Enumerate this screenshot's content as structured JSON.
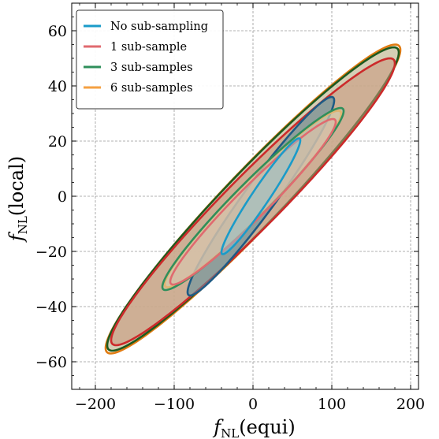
{
  "chart_data": {
    "type": "scatter",
    "subtype": "confidence-ellipses",
    "title": "",
    "xlabel": {
      "main": "f",
      "sub": "NL",
      "suffix": "(equi)"
    },
    "ylabel": {
      "main": "f",
      "sub": "NL",
      "suffix": "(local)"
    },
    "xlim": [
      -230,
      210
    ],
    "ylim": [
      -70,
      70
    ],
    "xticks": [
      -200,
      -100,
      0,
      100,
      200
    ],
    "xtick_labels": [
      "−200",
      "−100",
      "0",
      "100",
      "200"
    ],
    "yticks": [
      -60,
      -40,
      -20,
      0,
      20,
      40,
      60
    ],
    "ytick_labels": [
      "−60",
      "−40",
      "−20",
      "0",
      "20",
      "40",
      "60"
    ],
    "grid": true,
    "legend_position": "top-left",
    "series": [
      {
        "name": "No sub-sampling",
        "color": "#1a9bc9",
        "center": [
          10,
          0
        ],
        "contours": [
          {
            "level": "1sigma",
            "extent_x": [
              -45,
              55
            ],
            "extent_y": [
              -21,
              21
            ],
            "fill_color": "#8fc4d0",
            "edge_color": "#1a9bc9"
          },
          {
            "level": "2sigma",
            "extent_x": [
              -93,
              93
            ],
            "extent_y": [
              -36,
              36
            ],
            "fill_color": "#5b8fa0",
            "edge_color": "#1d5b85"
          }
        ]
      },
      {
        "name": "1 sub-sample",
        "color": "#e06a6f",
        "center": [
          0,
          -2
        ],
        "contours": [
          {
            "level": "1sigma",
            "extent_x": [
              -105,
              105
            ],
            "extent_y": [
              -30,
              30
            ],
            "fill_color": "#d8b9a8",
            "edge_color": "#e06a6f"
          },
          {
            "level": "2sigma",
            "extent_x": [
              -180,
              180
            ],
            "extent_y": [
              -52,
              52
            ],
            "fill_color": "#c9957a",
            "edge_color": "#cc2a2a"
          }
        ]
      },
      {
        "name": "3 sub-samples",
        "color": "#2f8f5b",
        "center": [
          0,
          -1
        ],
        "contours": [
          {
            "level": "1sigma",
            "extent_x": [
              -115,
              115
            ],
            "extent_y": [
              -33,
              33
            ],
            "fill_color": "#c7c9a8",
            "edge_color": "#2f8f5b"
          },
          {
            "level": "2sigma",
            "extent_x": [
              -185,
              185
            ],
            "extent_y": [
              -55,
              55
            ],
            "fill_color": "#b5b592",
            "edge_color": "#1d5a1f"
          }
        ]
      },
      {
        "name": "6 sub-samples",
        "color": "#f5a142",
        "center": [
          0,
          -1
        ],
        "contours": [
          {
            "level": "1sigma",
            "extent_x": [
              -112,
              112
            ],
            "extent_y": [
              -32,
              32
            ],
            "fill_color": "#efd9b3",
            "edge_color": "#f5a142"
          },
          {
            "level": "2sigma",
            "extent_x": [
              -187,
              187
            ],
            "extent_y": [
              -56,
              56
            ],
            "fill_color": "#f8e3c5",
            "edge_color": "#e07b12"
          }
        ]
      }
    ]
  }
}
